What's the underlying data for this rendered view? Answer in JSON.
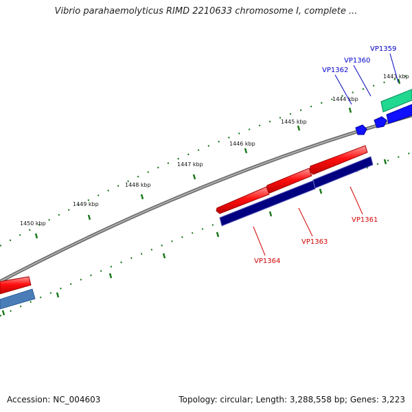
{
  "title": "Vibrio parahaemolyticus RIMD 2210633 chromosome I, complete ...",
  "footer": {
    "accession": "Accession: NC_004603",
    "summary": "Topology: circular; Length: 3,288,558 bp; Genes: 3,223"
  },
  "ticks": [
    "1443 kbp",
    "1444 kbp",
    "1445 kbp",
    "1446 kbp",
    "1447 kbp",
    "1448 kbp",
    "1449 kbp",
    "1450 kbp"
  ],
  "gene_labels": {
    "VP1359": "VP1359",
    "VP1360": "VP1360",
    "VP1362": "VP1362",
    "VP1361": "VP1361",
    "VP1363": "VP1363",
    "VP1364": "VP1364"
  },
  "colors": {
    "backbone": "#888888",
    "forward_cds": "#ff1a1a",
    "reverse_cds_bar": "#000080",
    "blue_gene": "#1010ff",
    "teal_gene": "#20d890",
    "steel_gene": "#4a7db8",
    "tick_green": "#1a7a1a"
  }
}
